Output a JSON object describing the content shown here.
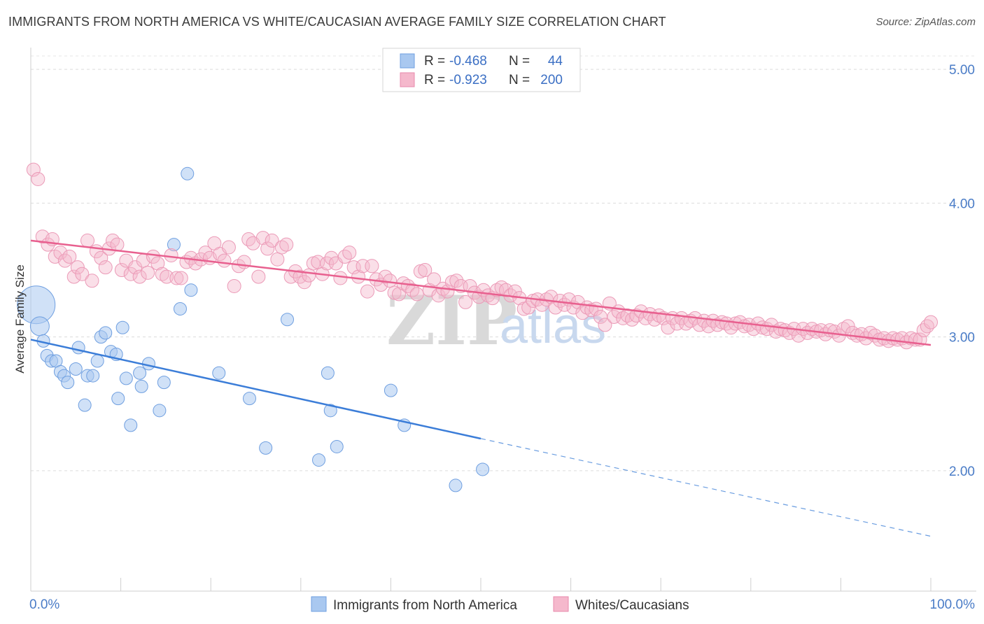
{
  "title": "IMMIGRANTS FROM NORTH AMERICA VS WHITE/CAUCASIAN AVERAGE FAMILY SIZE CORRELATION CHART",
  "source": "Source: ZipAtlas.com",
  "watermark": {
    "zip": "ZIP",
    "atlas": "atlas"
  },
  "colors": {
    "blue": "#3b7dd8",
    "blue_fill": "#a9c8f0",
    "pink": "#e8608f",
    "pink_fill": "#f5b8cc",
    "tick_label": "#4a7cc7",
    "grid": "#dcdcdc"
  },
  "legend_top": {
    "rows": [
      {
        "r_label": "R =",
        "r_value": "-0.468",
        "n_label": "N =",
        "n_value": "44"
      },
      {
        "r_label": "R =",
        "r_value": "-0.923",
        "n_label": "N =",
        "n_value": "200"
      }
    ]
  },
  "chart_data": {
    "type": "scatter",
    "title": "IMMIGRANTS FROM NORTH AMERICA VS WHITE/CAUCASIAN AVERAGE FAMILY SIZE CORRELATION CHART",
    "xlabel": "",
    "ylabel": "Average Family Size",
    "xlim": [
      0,
      100
    ],
    "ylim": [
      1.1,
      5.1
    ],
    "x_tick_labels": [
      "0.0%",
      "100.0%"
    ],
    "y_ticks": [
      2.0,
      3.0,
      4.0,
      5.0
    ],
    "y_tick_labels": [
      "2.00",
      "3.00",
      "4.00",
      "5.00"
    ],
    "grid": true,
    "legend_position": "bottom",
    "series": [
      {
        "name": "Immigrants from North America",
        "color": "#3b7dd8",
        "r": -0.468,
        "n": 44,
        "trend": {
          "x0": 0,
          "y0": 2.98,
          "x1": 50,
          "y1": 2.24,
          "dash_x1": 100,
          "dash_y1": 1.51
        },
        "points": [
          [
            0.6,
            3.24,
            3
          ],
          [
            1.0,
            3.08,
            1.5
          ],
          [
            1.4,
            2.97,
            1
          ],
          [
            1.8,
            2.86,
            1
          ],
          [
            2.3,
            2.82,
            1
          ],
          [
            2.8,
            2.82,
            1
          ],
          [
            3.3,
            2.74,
            1
          ],
          [
            3.7,
            2.71,
            1
          ],
          [
            4.1,
            2.66,
            1
          ],
          [
            5.0,
            2.76,
            1
          ],
          [
            5.3,
            2.92,
            1
          ],
          [
            6.0,
            2.49,
            1
          ],
          [
            6.3,
            2.71,
            1
          ],
          [
            6.9,
            2.71,
            1
          ],
          [
            7.4,
            2.82,
            1
          ],
          [
            7.8,
            3.0,
            1
          ],
          [
            8.3,
            3.03,
            1
          ],
          [
            8.9,
            2.89,
            1
          ],
          [
            9.5,
            2.87,
            1
          ],
          [
            9.7,
            2.54,
            1
          ],
          [
            10.2,
            3.07,
            1
          ],
          [
            10.6,
            2.69,
            1
          ],
          [
            11.1,
            2.34,
            1
          ],
          [
            12.1,
            2.73,
            1
          ],
          [
            12.3,
            2.63,
            1
          ],
          [
            13.1,
            2.8,
            1
          ],
          [
            14.3,
            2.45,
            1
          ],
          [
            14.8,
            2.66,
            1
          ],
          [
            15.9,
            3.69,
            1
          ],
          [
            16.6,
            3.21,
            1
          ],
          [
            17.4,
            4.22,
            1
          ],
          [
            17.8,
            3.35,
            1
          ],
          [
            20.9,
            2.73,
            1
          ],
          [
            24.3,
            2.54,
            1
          ],
          [
            26.1,
            2.17,
            1
          ],
          [
            28.5,
            3.13,
            1
          ],
          [
            32.0,
            2.08,
            1
          ],
          [
            33.0,
            2.73,
            1
          ],
          [
            33.3,
            2.45,
            1
          ],
          [
            34.0,
            2.18,
            1
          ],
          [
            40.0,
            2.6,
            1
          ],
          [
            41.5,
            2.34,
            1
          ],
          [
            47.2,
            1.89,
            1
          ],
          [
            50.2,
            2.01,
            1
          ]
        ]
      },
      {
        "name": "Whites/Caucasians",
        "color": "#e8608f",
        "r": -0.923,
        "n": 200,
        "trend": {
          "x0": 0,
          "y0": 3.72,
          "x1": 100,
          "y1": 2.94
        },
        "points": [
          [
            0.3,
            4.25
          ],
          [
            0.8,
            4.18
          ],
          [
            1.3,
            3.75
          ],
          [
            1.9,
            3.69
          ],
          [
            2.4,
            3.73
          ],
          [
            2.7,
            3.6
          ],
          [
            3.3,
            3.63
          ],
          [
            3.8,
            3.57
          ],
          [
            4.3,
            3.6
          ],
          [
            4.8,
            3.45
          ],
          [
            5.2,
            3.52
          ],
          [
            5.7,
            3.47
          ],
          [
            6.3,
            3.72
          ],
          [
            6.8,
            3.42
          ],
          [
            7.3,
            3.64
          ],
          [
            7.8,
            3.59
          ],
          [
            8.3,
            3.52
          ],
          [
            8.7,
            3.66
          ],
          [
            9.1,
            3.72
          ],
          [
            9.6,
            3.69
          ],
          [
            10.1,
            3.5
          ],
          [
            10.6,
            3.57
          ],
          [
            11.1,
            3.47
          ],
          [
            11.6,
            3.52
          ],
          [
            12.1,
            3.45
          ],
          [
            12.5,
            3.57
          ],
          [
            13.0,
            3.48
          ],
          [
            13.6,
            3.6
          ],
          [
            14.1,
            3.55
          ],
          [
            14.6,
            3.47
          ],
          [
            15.1,
            3.45
          ],
          [
            15.6,
            3.61
          ],
          [
            16.2,
            3.44
          ],
          [
            16.7,
            3.44
          ],
          [
            17.3,
            3.56
          ],
          [
            17.8,
            3.59
          ],
          [
            18.3,
            3.55
          ],
          [
            18.9,
            3.58
          ],
          [
            19.4,
            3.63
          ],
          [
            19.9,
            3.59
          ],
          [
            20.4,
            3.7
          ],
          [
            21.0,
            3.62
          ],
          [
            21.5,
            3.57
          ],
          [
            22.0,
            3.67
          ],
          [
            22.6,
            3.38
          ],
          [
            23.1,
            3.53
          ],
          [
            23.7,
            3.56
          ],
          [
            24.2,
            3.73
          ],
          [
            24.7,
            3.7
          ],
          [
            25.3,
            3.45
          ],
          [
            25.8,
            3.74
          ],
          [
            26.3,
            3.66
          ],
          [
            26.8,
            3.72
          ],
          [
            27.4,
            3.58
          ],
          [
            27.9,
            3.67
          ],
          [
            28.4,
            3.69
          ],
          [
            28.9,
            3.45
          ],
          [
            29.4,
            3.49
          ],
          [
            29.9,
            3.45
          ],
          [
            30.4,
            3.41
          ],
          [
            30.9,
            3.46
          ],
          [
            31.4,
            3.55
          ],
          [
            31.9,
            3.56
          ],
          [
            32.4,
            3.47
          ],
          [
            32.9,
            3.55
          ],
          [
            33.4,
            3.59
          ],
          [
            33.9,
            3.55
          ],
          [
            34.4,
            3.44
          ],
          [
            34.9,
            3.6
          ],
          [
            35.4,
            3.63
          ],
          [
            35.9,
            3.52
          ],
          [
            36.4,
            3.45
          ],
          [
            36.9,
            3.53
          ],
          [
            37.4,
            3.34
          ],
          [
            37.9,
            3.53
          ],
          [
            38.4,
            3.43
          ],
          [
            38.9,
            3.39
          ],
          [
            39.4,
            3.45
          ],
          [
            39.9,
            3.42
          ],
          [
            40.4,
            3.33
          ],
          [
            40.9,
            3.32
          ],
          [
            41.4,
            3.4
          ],
          [
            41.9,
            3.38
          ],
          [
            42.4,
            3.35
          ],
          [
            42.9,
            3.32
          ],
          [
            43.3,
            3.49
          ],
          [
            43.8,
            3.5
          ],
          [
            44.3,
            3.35
          ],
          [
            44.8,
            3.43
          ],
          [
            45.3,
            3.31
          ],
          [
            45.8,
            3.36
          ],
          [
            46.3,
            3.34
          ],
          [
            46.8,
            3.41
          ],
          [
            47.3,
            3.42
          ],
          [
            47.8,
            3.38
          ],
          [
            48.3,
            3.26
          ],
          [
            48.8,
            3.38
          ],
          [
            49.3,
            3.33
          ],
          [
            49.8,
            3.3
          ],
          [
            50.3,
            3.35
          ],
          [
            50.8,
            3.31
          ],
          [
            51.3,
            3.29
          ],
          [
            51.8,
            3.35
          ],
          [
            52.3,
            3.37
          ],
          [
            52.8,
            3.35
          ],
          [
            53.3,
            3.31
          ],
          [
            53.8,
            3.34
          ],
          [
            54.3,
            3.29
          ],
          [
            54.8,
            3.21
          ],
          [
            55.3,
            3.22
          ],
          [
            55.8,
            3.27
          ],
          [
            56.3,
            3.28
          ],
          [
            56.8,
            3.24
          ],
          [
            57.3,
            3.28
          ],
          [
            57.8,
            3.3
          ],
          [
            58.3,
            3.22
          ],
          [
            58.8,
            3.27
          ],
          [
            59.3,
            3.24
          ],
          [
            59.8,
            3.28
          ],
          [
            60.3,
            3.22
          ],
          [
            60.8,
            3.26
          ],
          [
            61.3,
            3.18
          ],
          [
            61.8,
            3.22
          ],
          [
            62.3,
            3.2
          ],
          [
            62.8,
            3.21
          ],
          [
            63.3,
            3.15
          ],
          [
            63.8,
            3.09
          ],
          [
            64.3,
            3.25
          ],
          [
            64.8,
            3.15
          ],
          [
            65.3,
            3.19
          ],
          [
            65.8,
            3.14
          ],
          [
            66.3,
            3.16
          ],
          [
            66.8,
            3.13
          ],
          [
            67.3,
            3.16
          ],
          [
            67.8,
            3.19
          ],
          [
            68.3,
            3.14
          ],
          [
            68.8,
            3.17
          ],
          [
            69.3,
            3.13
          ],
          [
            69.8,
            3.16
          ],
          [
            70.3,
            3.14
          ],
          [
            70.8,
            3.07
          ],
          [
            71.3,
            3.14
          ],
          [
            71.8,
            3.1
          ],
          [
            72.3,
            3.14
          ],
          [
            72.8,
            3.1
          ],
          [
            73.3,
            3.12
          ],
          [
            73.8,
            3.14
          ],
          [
            74.3,
            3.09
          ],
          [
            74.8,
            3.12
          ],
          [
            75.3,
            3.08
          ],
          [
            75.8,
            3.12
          ],
          [
            76.3,
            3.09
          ],
          [
            76.8,
            3.11
          ],
          [
            77.3,
            3.1
          ],
          [
            77.8,
            3.07
          ],
          [
            78.3,
            3.1
          ],
          [
            78.8,
            3.11
          ],
          [
            79.3,
            3.08
          ],
          [
            79.8,
            3.09
          ],
          [
            80.3,
            3.06
          ],
          [
            80.8,
            3.1
          ],
          [
            81.3,
            3.07
          ],
          [
            81.8,
            3.06
          ],
          [
            82.3,
            3.09
          ],
          [
            82.8,
            3.04
          ],
          [
            83.3,
            3.06
          ],
          [
            83.8,
            3.05
          ],
          [
            84.3,
            3.03
          ],
          [
            84.8,
            3.06
          ],
          [
            85.3,
            3.01
          ],
          [
            85.8,
            3.06
          ],
          [
            86.3,
            3.03
          ],
          [
            86.8,
            3.06
          ],
          [
            87.3,
            3.04
          ],
          [
            87.8,
            3.05
          ],
          [
            88.3,
            3.02
          ],
          [
            88.8,
            3.05
          ],
          [
            89.3,
            3.04
          ],
          [
            89.8,
            3.01
          ],
          [
            90.3,
            3.06
          ],
          [
            90.8,
            3.08
          ],
          [
            91.3,
            3.03
          ],
          [
            91.8,
            3.01
          ],
          [
            92.3,
            3.02
          ],
          [
            92.8,
            2.99
          ],
          [
            93.3,
            3.03
          ],
          [
            93.8,
            3.01
          ],
          [
            94.3,
            2.98
          ],
          [
            94.8,
            2.99
          ],
          [
            95.3,
            2.97
          ],
          [
            95.8,
            2.99
          ],
          [
            96.3,
            2.98
          ],
          [
            96.8,
            2.99
          ],
          [
            97.3,
            2.96
          ],
          [
            97.8,
            2.99
          ],
          [
            98.3,
            2.98
          ],
          [
            98.8,
            2.98
          ],
          [
            99.2,
            3.05
          ],
          [
            99.6,
            3.08
          ],
          [
            100.0,
            3.11
          ]
        ]
      }
    ]
  }
}
